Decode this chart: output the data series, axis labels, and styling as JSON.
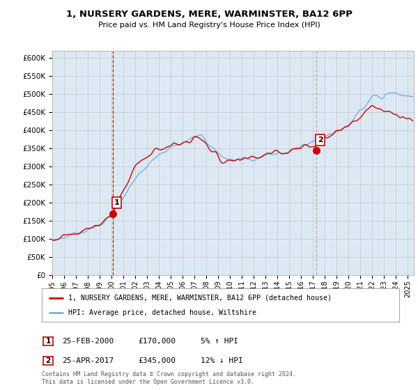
{
  "title": "1, NURSERY GARDENS, MERE, WARMINSTER, BA12 6PP",
  "subtitle": "Price paid vs. HM Land Registry's House Price Index (HPI)",
  "ylabel_ticks": [
    "£0",
    "£50K",
    "£100K",
    "£150K",
    "£200K",
    "£250K",
    "£300K",
    "£350K",
    "£400K",
    "£450K",
    "£500K",
    "£550K",
    "£600K"
  ],
  "ytick_values": [
    0,
    50000,
    100000,
    150000,
    200000,
    250000,
    300000,
    350000,
    400000,
    450000,
    500000,
    550000,
    600000
  ],
  "ylim": [
    0,
    620000
  ],
  "xlim_start": 1995.0,
  "xlim_end": 2025.5,
  "hpi_color": "#7aafe0",
  "price_color": "#cc0000",
  "vline1_color": "#cc0000",
  "vline1_style": "--",
  "vline2_color": "#aaaaaa",
  "vline2_style": "--",
  "grid_color": "#cccccc",
  "bg_color": "#dce9f5",
  "figure_bg": "#ffffff",
  "marker1_x": 2000.12,
  "marker1_y": 170000,
  "marker2_x": 2017.3,
  "marker2_y": 345000,
  "legend_entry1": "1, NURSERY GARDENS, MERE, WARMINSTER, BA12 6PP (detached house)",
  "legend_entry2": "HPI: Average price, detached house, Wiltshire",
  "annotation1_date": "25-FEB-2000",
  "annotation1_price": "£170,000",
  "annotation1_pct": "5% ↑ HPI",
  "annotation2_date": "25-APR-2017",
  "annotation2_price": "£345,000",
  "annotation2_pct": "12% ↓ HPI",
  "footer": "Contains HM Land Registry data © Crown copyright and database right 2024.\nThis data is licensed under the Open Government Licence v3.0.",
  "xtick_years": [
    1995,
    1996,
    1997,
    1998,
    1999,
    2000,
    2001,
    2002,
    2003,
    2004,
    2005,
    2006,
    2007,
    2008,
    2009,
    2010,
    2011,
    2012,
    2013,
    2014,
    2015,
    2016,
    2017,
    2018,
    2019,
    2020,
    2021,
    2022,
    2023,
    2024,
    2025
  ],
  "box_color": "#cc0000"
}
